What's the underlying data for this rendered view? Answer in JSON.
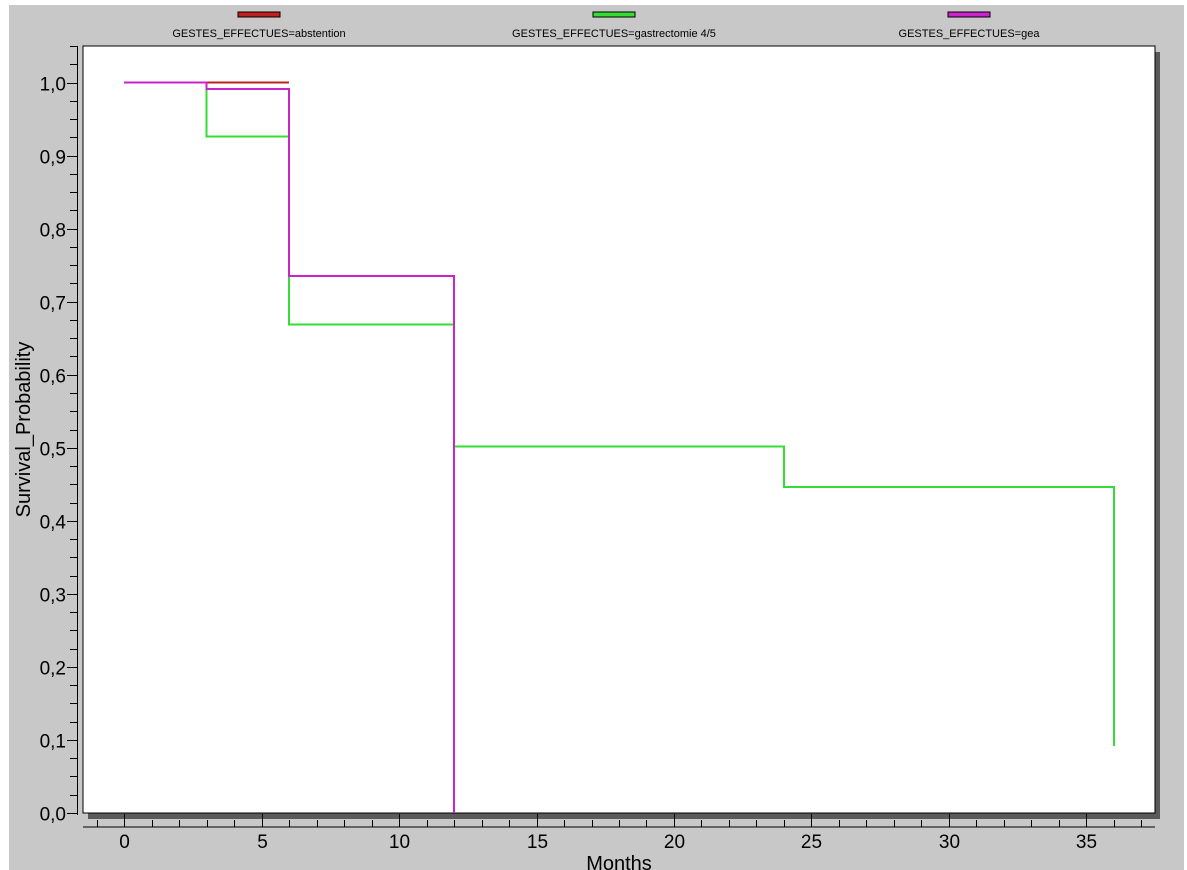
{
  "chart_data": {
    "type": "line",
    "step": true,
    "xlabel": "Months",
    "ylabel": "Survival_Probability",
    "xlim": [
      -1.5,
      37.5
    ],
    "ylim": [
      0,
      1.05
    ],
    "xticks": [
      "0",
      "5",
      "10",
      "15",
      "20",
      "25",
      "30",
      "35"
    ],
    "xtick_values": [
      0,
      5,
      10,
      15,
      20,
      25,
      30,
      35
    ],
    "yticks": [
      "0,0",
      "0,1",
      "0,2",
      "0,3",
      "0,4",
      "0,5",
      "0,6",
      "0,7",
      "0,8",
      "0,9",
      "1,0"
    ],
    "ytick_values": [
      0,
      0.1,
      0.2,
      0.3,
      0.4,
      0.5,
      0.6,
      0.7,
      0.8,
      0.9,
      1.0
    ],
    "grid": false,
    "legend_position": "top",
    "series": [
      {
        "name": "GESTES_EFFECTUES=abstention",
        "color": "#c0201e",
        "x": [
          0,
          6
        ],
        "y": [
          1.0,
          1.0
        ]
      },
      {
        "name": "GESTES_EFFECTUES=gastrectomie 4/5",
        "color": "#33dd33",
        "x": [
          0,
          3,
          6,
          12,
          24,
          36
        ],
        "y": [
          1.0,
          0.926,
          0.669,
          0.502,
          0.446,
          0.092
        ]
      },
      {
        "name": "GESTES_EFFECTUES=gea",
        "color": "#cc22cc",
        "x": [
          0,
          3,
          6,
          12
        ],
        "y": [
          1.0,
          0.991,
          0.735,
          0.0
        ]
      }
    ]
  }
}
